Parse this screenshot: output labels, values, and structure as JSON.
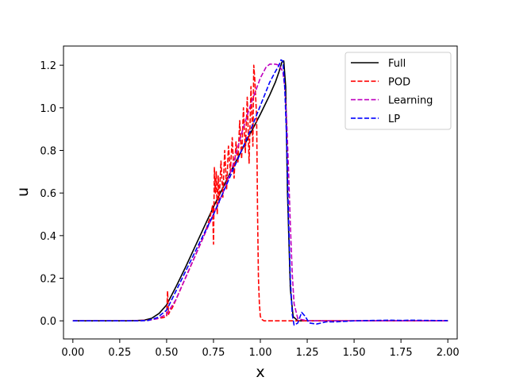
{
  "chart_data": {
    "type": "line",
    "xlabel": "x",
    "ylabel": "u",
    "xlim": [
      -0.05,
      2.05
    ],
    "ylim": [
      -0.085,
      1.29
    ],
    "xticks": [
      0.0,
      0.25,
      0.5,
      0.75,
      1.0,
      1.25,
      1.5,
      1.75,
      2.0
    ],
    "xtick_labels": [
      "0.00",
      "0.25",
      "0.50",
      "0.75",
      "1.00",
      "1.25",
      "1.50",
      "1.75",
      "2.00"
    ],
    "yticks": [
      0.0,
      0.2,
      0.4,
      0.6,
      0.8,
      1.0,
      1.2
    ],
    "ytick_labels": [
      "0.0",
      "0.2",
      "0.4",
      "0.6",
      "0.8",
      "1.0",
      "1.2"
    ],
    "legend_position": "top-right",
    "grid": false,
    "series": [
      {
        "name": "Full",
        "color": "#000000",
        "dash": "solid",
        "x": [
          0,
          0.3,
          0.38,
          0.42,
          0.46,
          0.5,
          0.55,
          0.6,
          0.65,
          0.7,
          0.75,
          0.8,
          0.85,
          0.9,
          0.95,
          1.0,
          1.05,
          1.08,
          1.1,
          1.115,
          1.125,
          1.135,
          1.145,
          1.16,
          1.175,
          1.2,
          1.3,
          1.5,
          1.75,
          2.0
        ],
        "y": [
          0,
          0,
          0.003,
          0.012,
          0.035,
          0.075,
          0.16,
          0.25,
          0.345,
          0.44,
          0.535,
          0.625,
          0.715,
          0.8,
          0.885,
          0.97,
          1.06,
          1.12,
          1.17,
          1.215,
          1.22,
          1.1,
          0.6,
          0.15,
          0.02,
          0,
          0,
          0,
          0,
          0
        ]
      },
      {
        "name": "POD",
        "color": "#ff0000",
        "dash": "dashed",
        "x": [
          0,
          0.3,
          0.4,
          0.45,
          0.48,
          0.5,
          0.505,
          0.51,
          0.52,
          0.53,
          0.55,
          0.6,
          0.65,
          0.7,
          0.73,
          0.745,
          0.75,
          0.755,
          0.76,
          0.765,
          0.77,
          0.775,
          0.78,
          0.79,
          0.8,
          0.81,
          0.82,
          0.83,
          0.84,
          0.85,
          0.86,
          0.87,
          0.88,
          0.89,
          0.9,
          0.91,
          0.92,
          0.93,
          0.94,
          0.95,
          0.96,
          0.965,
          0.97,
          0.975,
          0.98,
          0.985,
          0.99,
          0.995,
          1.0,
          1.01,
          1.02,
          1.04,
          1.1,
          1.5,
          2.0
        ],
        "y": [
          0,
          0,
          0.003,
          0.01,
          0.015,
          0.02,
          0.14,
          0.03,
          0.05,
          0.06,
          0.1,
          0.2,
          0.3,
          0.4,
          0.48,
          0.54,
          0.36,
          0.72,
          0.6,
          0.7,
          0.5,
          0.68,
          0.55,
          0.75,
          0.58,
          0.8,
          0.62,
          0.82,
          0.7,
          0.86,
          0.67,
          0.84,
          0.74,
          0.94,
          0.76,
          1.0,
          0.79,
          1.05,
          0.74,
          1.1,
          0.82,
          1.2,
          1.14,
          1.05,
          0.96,
          0.5,
          0.2,
          0.08,
          0.02,
          0.005,
          0,
          0,
          0,
          0,
          0
        ]
      },
      {
        "name": "Learning",
        "color": "#bf00bf",
        "dash": "dashed",
        "x": [
          0,
          0.35,
          0.4,
          0.45,
          0.5,
          0.55,
          0.6,
          0.65,
          0.7,
          0.75,
          0.8,
          0.85,
          0.9,
          0.95,
          1.0,
          1.03,
          1.05,
          1.08,
          1.1,
          1.12,
          1.13,
          1.14,
          1.15,
          1.16,
          1.17,
          1.18,
          1.2,
          1.25,
          1.3,
          1.5,
          1.75,
          2.0
        ],
        "y": [
          0,
          0,
          0.002,
          0.01,
          0.03,
          0.1,
          0.2,
          0.3,
          0.4,
          0.5,
          0.6,
          0.72,
          0.88,
          1.02,
          1.14,
          1.19,
          1.205,
          1.205,
          1.2,
          1.17,
          1.1,
          0.95,
          0.72,
          0.45,
          0.22,
          0.08,
          0.01,
          0,
          0,
          0,
          0,
          0
        ]
      },
      {
        "name": "LP",
        "color": "#0000ff",
        "dash": "dashed",
        "x": [
          0,
          0.35,
          0.4,
          0.45,
          0.5,
          0.55,
          0.6,
          0.65,
          0.7,
          0.75,
          0.8,
          0.85,
          0.9,
          0.95,
          1.0,
          1.05,
          1.08,
          1.1,
          1.11,
          1.12,
          1.13,
          1.14,
          1.15,
          1.16,
          1.17,
          1.18,
          1.2,
          1.22,
          1.24,
          1.26,
          1.3,
          1.35,
          1.4,
          1.5,
          1.6,
          1.7,
          1.75,
          1.8,
          1.9,
          2.0
        ],
        "y": [
          0,
          0,
          0.002,
          0.015,
          0.05,
          0.14,
          0.23,
          0.32,
          0.41,
          0.5,
          0.6,
          0.7,
          0.8,
          0.9,
          1.01,
          1.12,
          1.17,
          1.2,
          1.225,
          1.22,
          1.1,
          0.85,
          0.5,
          0.2,
          0.03,
          -0.02,
          -0.01,
          0.04,
          0.02,
          -0.01,
          -0.015,
          -0.005,
          -0.005,
          0,
          0.002,
          0.003,
          0.002,
          0.003,
          0.002,
          0.001
        ]
      }
    ]
  }
}
